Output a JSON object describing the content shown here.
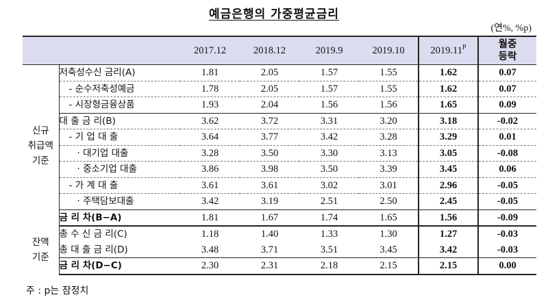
{
  "title": "예금은행의 가중평균금리",
  "unit": "(연%, %p)",
  "headers": {
    "periods": [
      "2017.12",
      "2018.12",
      "2019.9",
      "2019.10"
    ],
    "latest": "2019.11",
    "latest_sup": "P",
    "change_line1": "월중",
    "change_line2": "등락"
  },
  "groups": [
    {
      "label_line1": "신규",
      "label_line2": "취급액",
      "label_line3": "기준",
      "rows": [
        {
          "label": "저축성수신 금리(A)",
          "values": [
            "1.81",
            "2.05",
            "1.57",
            "1.55"
          ],
          "latest": "1.62",
          "change": "0.07"
        },
        {
          "label": "- 순수저축성예금",
          "values": [
            "1.78",
            "2.05",
            "1.57",
            "1.55"
          ],
          "latest": "1.62",
          "change": "0.07"
        },
        {
          "label": "- 시장형금융상품",
          "values": [
            "1.93",
            "2.04",
            "1.56",
            "1.56"
          ],
          "latest": "1.65",
          "change": "0.09"
        },
        {
          "label": "대 출 금 리(B)",
          "values": [
            "3.62",
            "3.72",
            "3.31",
            "3.20"
          ],
          "latest": "3.18",
          "change": "-0.02"
        },
        {
          "label": "- 기 업 대 출",
          "values": [
            "3.64",
            "3.77",
            "3.42",
            "3.28"
          ],
          "latest": "3.29",
          "change": "0.01"
        },
        {
          "label": "· 대기업 대출",
          "values": [
            "3.28",
            "3.50",
            "3.30",
            "3.13"
          ],
          "latest": "3.05",
          "change": "-0.08"
        },
        {
          "label": "· 중소기업 대출",
          "values": [
            "3.86",
            "3.98",
            "3.50",
            "3.39"
          ],
          "latest": "3.45",
          "change": "0.06"
        },
        {
          "label": "- 가 계 대 출",
          "values": [
            "3.61",
            "3.61",
            "3.02",
            "3.01"
          ],
          "latest": "2.96",
          "change": "-0.05"
        },
        {
          "label": "· 주택담보대출",
          "values": [
            "3.42",
            "3.19",
            "2.51",
            "2.50"
          ],
          "latest": "2.45",
          "change": "-0.05"
        },
        {
          "label": "금 리 차(B−A)",
          "values": [
            "1.81",
            "1.67",
            "1.74",
            "1.65"
          ],
          "latest": "1.56",
          "change": "-0.09"
        }
      ]
    },
    {
      "label_line1": "잔액",
      "label_line2": "기준",
      "rows": [
        {
          "label": "총 수 신 금 리(C)",
          "values": [
            "1.18",
            "1.40",
            "1.33",
            "1.30"
          ],
          "latest": "1.27",
          "change": "-0.03"
        },
        {
          "label": "총 대 출 금 리(D)",
          "values": [
            "3.48",
            "3.71",
            "3.51",
            "3.45"
          ],
          "latest": "3.42",
          "change": "-0.03"
        },
        {
          "label": "금 리 차(D−C)",
          "values": [
            "2.30",
            "2.31",
            "2.18",
            "2.15"
          ],
          "latest": "2.15",
          "change": "0.00"
        }
      ]
    }
  ],
  "note": "주 : p는 잠정치"
}
